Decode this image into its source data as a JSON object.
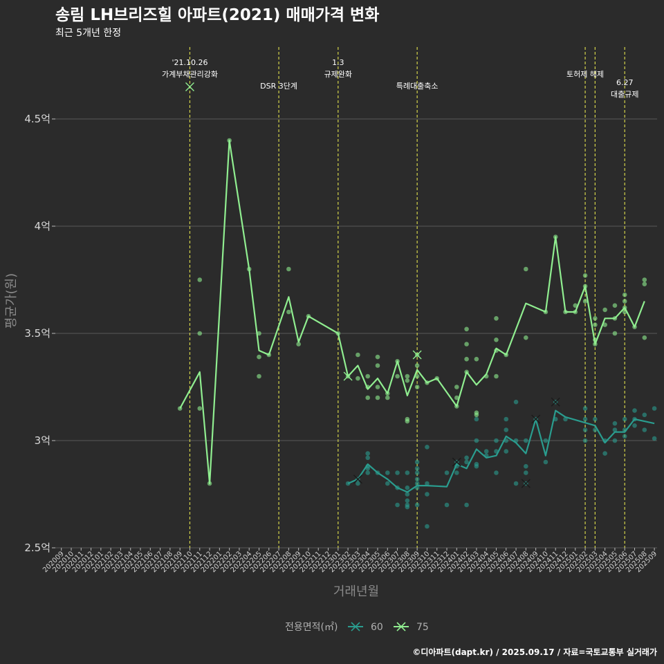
{
  "title": "송림 LH브리즈힐 아파트(2021) 매매가격 변화",
  "subtitle": "최근 5개년 한정",
  "caption": "©디아파트(dapt.kr) / 2025.09.17 / 자료=국토교통부 실거래가",
  "colors": {
    "background": "#2b2b2b",
    "grid": "#5a5a5a",
    "event_line": "#d4d44a",
    "series_60": "#2a9d8f",
    "series_75": "#90ee90"
  },
  "chart_data": {
    "type": "line",
    "title": "송림 LH브리즈힐 아파트(2021) 매매가격 변화",
    "subtitle": "최근 5개년 한정",
    "xlabel": "거래년월",
    "ylabel": "평균가(원)",
    "ylim": [
      2.5,
      4.85
    ],
    "yticks": [
      2.5,
      3,
      3.5,
      4,
      4.5
    ],
    "ytick_labels": [
      "2.5억",
      "3억",
      "3.5억",
      "4억",
      "4.5억"
    ],
    "legend": {
      "title": "전용면적(㎡)",
      "position": "bottom"
    },
    "categories": [
      "202009",
      "202010",
      "202011",
      "202012",
      "202101",
      "202102",
      "202103",
      "202104",
      "202105",
      "202106",
      "202107",
      "202108",
      "202109",
      "202110",
      "202111",
      "202112",
      "202201",
      "202202",
      "202203",
      "202204",
      "202205",
      "202206",
      "202207",
      "202208",
      "202209",
      "202210",
      "202211",
      "202212",
      "202301",
      "202302",
      "202303",
      "202304",
      "202305",
      "202306",
      "202307",
      "202308",
      "202309",
      "202310",
      "202311",
      "202312",
      "202401",
      "202402",
      "202403",
      "202404",
      "202405",
      "202406",
      "202407",
      "202408",
      "202409",
      "202410",
      "202411",
      "202412",
      "202501",
      "202502",
      "202503",
      "202504",
      "202505",
      "202506",
      "202507",
      "202508",
      "202509"
    ],
    "events": [
      {
        "x": "202110",
        "label_lines": [
          "'21.10.26",
          "가계부채관리강화"
        ],
        "level": 0
      },
      {
        "x": "202207",
        "label_lines": [
          "DSR 3단계"
        ],
        "level": 2
      },
      {
        "x": "202301",
        "label_lines": [
          "1.3",
          "규제완화"
        ],
        "level": 0
      },
      {
        "x": "202309",
        "label_lines": [
          "특례대출축소"
        ],
        "level": 2
      },
      {
        "x": "202502",
        "label_lines": [
          "토허제 해제"
        ],
        "level": 1
      },
      {
        "x": "202503",
        "label_lines": [],
        "level": 1
      },
      {
        "x": "202506",
        "label_lines": [
          "6.27",
          "대출규제"
        ],
        "level": 1.7
      }
    ],
    "series": [
      {
        "name": "60",
        "line": [
          [
            "202302",
            2.8
          ],
          [
            "202303",
            2.82
          ],
          [
            "202304",
            2.89
          ],
          [
            "202305",
            2.85
          ],
          [
            "202306",
            2.82
          ],
          [
            "202307",
            2.78
          ],
          [
            "202308",
            2.76
          ],
          [
            "202309",
            2.79
          ],
          [
            "202310",
            2.79
          ],
          [
            "202312",
            2.785
          ],
          [
            "202401",
            2.89
          ],
          [
            "202402",
            2.87
          ],
          [
            "202403",
            2.96
          ],
          [
            "202404",
            2.92
          ],
          [
            "202405",
            2.93
          ],
          [
            "202406",
            3.02
          ],
          [
            "202407",
            2.99
          ],
          [
            "202408",
            2.94
          ],
          [
            "202409",
            3.1
          ],
          [
            "202410",
            2.93
          ],
          [
            "202411",
            3.14
          ],
          [
            "202412",
            3.11
          ],
          [
            "202503",
            3.07
          ],
          [
            "202504",
            2.99
          ],
          [
            "202505",
            3.04
          ],
          [
            "202506",
            3.04
          ],
          [
            "202507",
            3.1
          ],
          [
            "202508",
            3.09
          ],
          [
            "202509",
            3.08
          ]
        ],
        "points": [
          [
            "202302",
            2.8
          ],
          [
            "202303",
            2.8
          ],
          [
            "202303",
            2.82
          ],
          [
            "202304",
            2.85
          ],
          [
            "202304",
            2.87
          ],
          [
            "202304",
            2.88
          ],
          [
            "202304",
            2.92
          ],
          [
            "202304",
            2.94
          ],
          [
            "202305",
            2.85
          ],
          [
            "202306",
            2.8
          ],
          [
            "202306",
            2.85
          ],
          [
            "202307",
            2.7
          ],
          [
            "202307",
            2.78
          ],
          [
            "202307",
            2.85
          ],
          [
            "202308",
            2.69
          ],
          [
            "202308",
            2.7
          ],
          [
            "202308",
            2.72
          ],
          [
            "202308",
            2.75
          ],
          [
            "202308",
            2.78
          ],
          [
            "202308",
            2.85
          ],
          [
            "202309",
            2.7
          ],
          [
            "202309",
            2.78
          ],
          [
            "202309",
            2.8
          ],
          [
            "202309",
            2.82
          ],
          [
            "202309",
            2.85
          ],
          [
            "202309",
            2.87
          ],
          [
            "202309",
            2.9
          ],
          [
            "202310",
            2.6
          ],
          [
            "202310",
            2.75
          ],
          [
            "202310",
            2.8
          ],
          [
            "202310",
            2.97
          ],
          [
            "202312",
            2.7
          ],
          [
            "202312",
            2.85
          ],
          [
            "202401",
            2.85
          ],
          [
            "202401",
            2.88
          ],
          [
            "202401",
            2.9
          ],
          [
            "202402",
            2.7
          ],
          [
            "202402",
            2.9
          ],
          [
            "202402",
            2.92
          ],
          [
            "202403",
            2.88
          ],
          [
            "202403",
            2.89
          ],
          [
            "202403",
            3.0
          ],
          [
            "202403",
            3.1
          ],
          [
            "202404",
            2.93
          ],
          [
            "202404",
            2.95
          ],
          [
            "202405",
            2.85
          ],
          [
            "202405",
            2.95
          ],
          [
            "202405",
            3.0
          ],
          [
            "202406",
            2.95
          ],
          [
            "202406",
            3.0
          ],
          [
            "202406",
            3.05
          ],
          [
            "202406",
            3.1
          ],
          [
            "202407",
            2.8
          ],
          [
            "202407",
            3.0
          ],
          [
            "202407",
            3.18
          ],
          [
            "202408",
            2.8
          ],
          [
            "202408",
            2.85
          ],
          [
            "202408",
            2.88
          ],
          [
            "202408",
            3.0
          ],
          [
            "202409",
            3.1
          ],
          [
            "202410",
            2.9
          ],
          [
            "202410",
            3.0
          ],
          [
            "202411",
            3.1
          ],
          [
            "202411",
            3.18
          ],
          [
            "202412",
            3.1
          ],
          [
            "202502",
            3.0
          ],
          [
            "202502",
            3.05
          ],
          [
            "202502",
            3.1
          ],
          [
            "202502",
            3.15
          ],
          [
            "202503",
            3.05
          ],
          [
            "202503",
            3.1
          ],
          [
            "202504",
            2.94
          ],
          [
            "202504",
            3.0
          ],
          [
            "202505",
            3.0
          ],
          [
            "202505",
            3.05
          ],
          [
            "202505",
            3.08
          ],
          [
            "202506",
            3.02
          ],
          [
            "202506",
            3.05
          ],
          [
            "202506",
            3.1
          ],
          [
            "202507",
            3.07
          ],
          [
            "202507",
            3.1
          ],
          [
            "202507",
            3.14
          ],
          [
            "202508",
            3.05
          ],
          [
            "202508",
            3.12
          ],
          [
            "202509",
            3.01
          ],
          [
            "202509",
            3.15
          ]
        ],
        "crosses": [
          [
            "202303",
            2.82
          ],
          [
            "202401",
            2.9
          ],
          [
            "202408",
            2.8
          ],
          [
            "202409",
            3.1
          ],
          [
            "202411",
            3.18
          ]
        ]
      },
      {
        "name": "75",
        "line": [
          [
            "202109",
            3.15
          ],
          [
            "202111",
            3.32
          ],
          [
            "202112",
            2.8
          ],
          [
            "202202",
            4.4
          ],
          [
            "202204",
            3.8
          ],
          [
            "202205",
            3.42
          ],
          [
            "202206",
            3.4
          ],
          [
            "202208",
            3.67
          ],
          [
            "202209",
            3.46
          ],
          [
            "202210",
            3.58
          ],
          [
            "202301",
            3.5
          ],
          [
            "202302",
            3.3
          ],
          [
            "202303",
            3.35
          ],
          [
            "202304",
            3.24
          ],
          [
            "202305",
            3.29
          ],
          [
            "202306",
            3.22
          ],
          [
            "202307",
            3.37
          ],
          [
            "202308",
            3.21
          ],
          [
            "202309",
            3.33
          ],
          [
            "202310",
            3.27
          ],
          [
            "202311",
            3.29
          ],
          [
            "202401",
            3.16
          ],
          [
            "202402",
            3.32
          ],
          [
            "202403",
            3.26
          ],
          [
            "202404",
            3.31
          ],
          [
            "202405",
            3.43
          ],
          [
            "202406",
            3.4
          ],
          [
            "202408",
            3.64
          ],
          [
            "202410",
            3.6
          ],
          [
            "202411",
            3.95
          ],
          [
            "202412",
            3.6
          ],
          [
            "202501",
            3.6
          ],
          [
            "202502",
            3.72
          ],
          [
            "202503",
            3.45
          ],
          [
            "202504",
            3.57
          ],
          [
            "202505",
            3.57
          ],
          [
            "202506",
            3.62
          ],
          [
            "202507",
            3.53
          ],
          [
            "202508",
            3.65
          ]
        ],
        "points": [
          [
            "202109",
            3.15
          ],
          [
            "202111",
            3.15
          ],
          [
            "202111",
            3.5
          ],
          [
            "202111",
            3.75
          ],
          [
            "202112",
            2.8
          ],
          [
            "202202",
            4.4
          ],
          [
            "202204",
            3.8
          ],
          [
            "202205",
            3.3
          ],
          [
            "202205",
            3.39
          ],
          [
            "202205",
            3.5
          ],
          [
            "202206",
            3.4
          ],
          [
            "202208",
            3.6
          ],
          [
            "202208",
            3.8
          ],
          [
            "202209",
            3.45
          ],
          [
            "202210",
            3.58
          ],
          [
            "202301",
            3.5
          ],
          [
            "202302",
            3.3
          ],
          [
            "202303",
            3.29
          ],
          [
            "202303",
            3.4
          ],
          [
            "202304",
            3.2
          ],
          [
            "202304",
            3.25
          ],
          [
            "202304",
            3.3
          ],
          [
            "202305",
            3.2
          ],
          [
            "202305",
            3.25
          ],
          [
            "202305",
            3.35
          ],
          [
            "202305",
            3.39
          ],
          [
            "202306",
            3.2
          ],
          [
            "202306",
            3.22
          ],
          [
            "202307",
            3.3
          ],
          [
            "202307",
            3.37
          ],
          [
            "202308",
            3.1
          ],
          [
            "202308",
            3.09
          ],
          [
            "202308",
            3.28
          ],
          [
            "202308",
            3.3
          ],
          [
            "202309",
            3.25
          ],
          [
            "202309",
            3.3
          ],
          [
            "202309",
            3.35
          ],
          [
            "202309",
            3.4
          ],
          [
            "202310",
            3.27
          ],
          [
            "202311",
            3.29
          ],
          [
            "202401",
            3.16
          ],
          [
            "202401",
            3.2
          ],
          [
            "202401",
            3.25
          ],
          [
            "202402",
            3.32
          ],
          [
            "202402",
            3.38
          ],
          [
            "202402",
            3.45
          ],
          [
            "202402",
            3.52
          ],
          [
            "202403",
            3.12
          ],
          [
            "202403",
            3.13
          ],
          [
            "202403",
            3.38
          ],
          [
            "202404",
            3.3
          ],
          [
            "202405",
            3.3
          ],
          [
            "202405",
            3.42
          ],
          [
            "202405",
            3.47
          ],
          [
            "202405",
            3.57
          ],
          [
            "202406",
            3.4
          ],
          [
            "202408",
            3.48
          ],
          [
            "202408",
            3.8
          ],
          [
            "202410",
            3.6
          ],
          [
            "202411",
            3.95
          ],
          [
            "202412",
            3.6
          ],
          [
            "202501",
            3.6
          ],
          [
            "202501",
            3.63
          ],
          [
            "202502",
            3.65
          ],
          [
            "202502",
            3.72
          ],
          [
            "202502",
            3.77
          ],
          [
            "202503",
            3.45
          ],
          [
            "202503",
            3.47
          ],
          [
            "202503",
            3.54
          ],
          [
            "202503",
            3.57
          ],
          [
            "202504",
            3.54
          ],
          [
            "202504",
            3.61
          ],
          [
            "202505",
            3.5
          ],
          [
            "202505",
            3.57
          ],
          [
            "202505",
            3.63
          ],
          [
            "202506",
            3.6
          ],
          [
            "202506",
            3.62
          ],
          [
            "202506",
            3.65
          ],
          [
            "202506",
            3.68
          ],
          [
            "202507",
            3.53
          ],
          [
            "202508",
            3.48
          ],
          [
            "202508",
            3.73
          ],
          [
            "202508",
            3.75
          ]
        ],
        "crosses": [
          [
            "202110",
            4.65
          ],
          [
            "202302",
            3.3
          ],
          [
            "202309",
            3.4
          ]
        ]
      }
    ]
  }
}
